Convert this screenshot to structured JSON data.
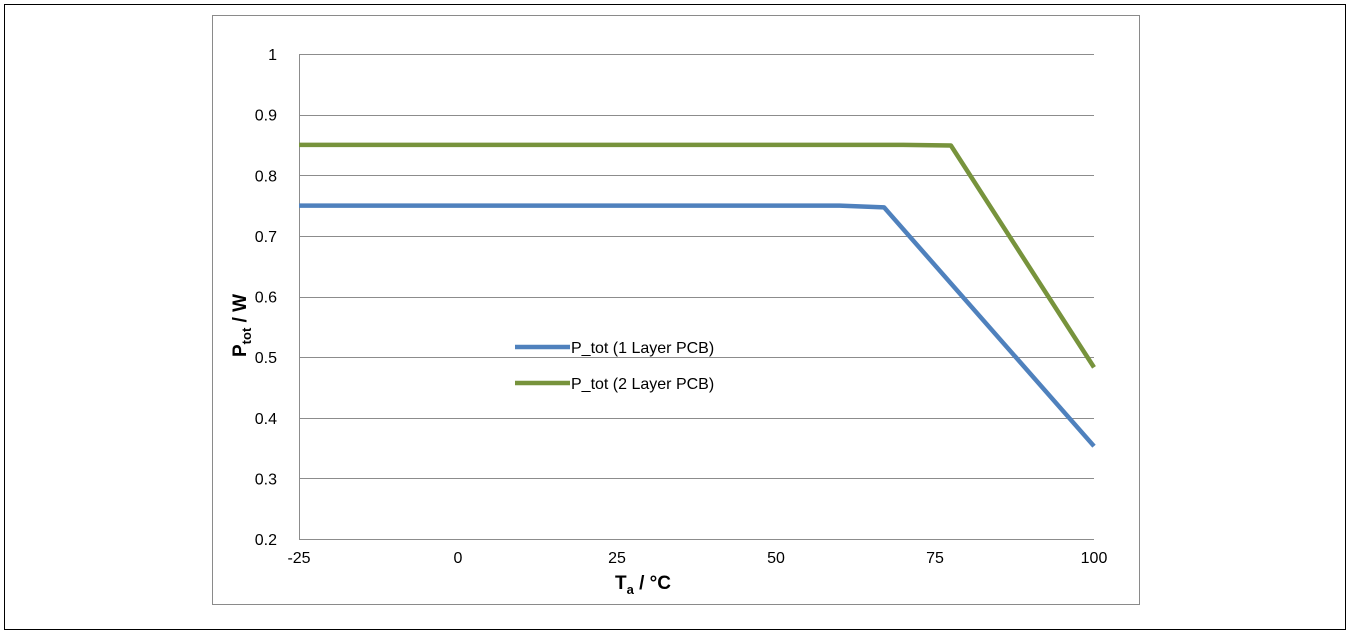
{
  "chart_data": {
    "type": "line",
    "xlabel": {
      "main": "T",
      "sub": "a",
      "suffix": " / °C"
    },
    "ylabel": {
      "main": "P",
      "sub": "tot",
      "suffix": " / W"
    },
    "xlim": [
      -25,
      100
    ],
    "ylim": [
      0.2,
      1.0
    ],
    "xticks": [
      "-25",
      "0",
      "25",
      "50",
      "75",
      "100"
    ],
    "xtick_values": [
      -25,
      0,
      25,
      50,
      75,
      100
    ],
    "yticks": [
      "0.2",
      "0.3",
      "0.4",
      "0.5",
      "0.6",
      "0.7",
      "0.8",
      "0.9",
      "1"
    ],
    "ytick_values": [
      0.2,
      0.3,
      0.4,
      0.5,
      0.6,
      0.7,
      0.8,
      0.9,
      1.0
    ],
    "grid": "horizontal",
    "legend_position": "center",
    "series": [
      {
        "name": "P_tot (1 Layer PCB)",
        "color": "#4f81bd",
        "x": [
          -25,
          60,
          67,
          100
        ],
        "y": [
          0.75,
          0.75,
          0.747,
          0.353
        ]
      },
      {
        "name": "P_tot (2 Layer PCB)",
        "color": "#77933c",
        "x": [
          -25,
          70,
          77.5,
          100
        ],
        "y": [
          0.85,
          0.85,
          0.849,
          0.483
        ]
      }
    ]
  }
}
